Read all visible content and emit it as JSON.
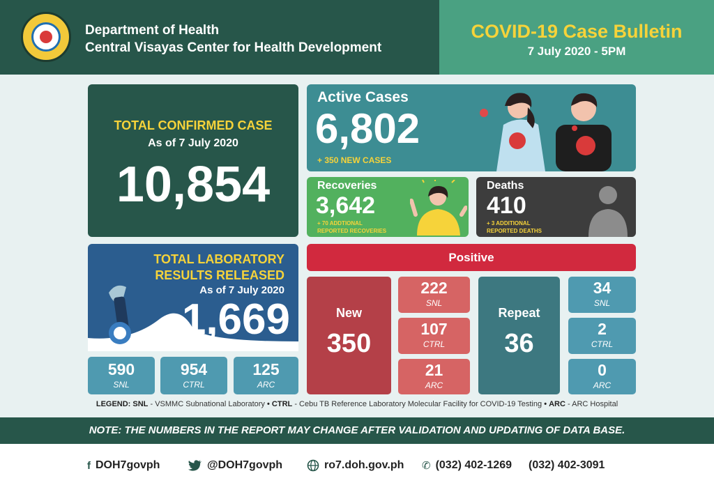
{
  "header": {
    "org_line1": "Department of Health",
    "org_line2": "Central Visayas Center for Health Development",
    "bulletin_title": "COVID-19 Case Bulletin",
    "bulletin_date": "7 July 2020 - 5PM",
    "seal_icon": "doh-seal-icon"
  },
  "total_confirmed": {
    "label": "TOTAL CONFIRMED CASE",
    "as_of": "As of 7 July 2020",
    "value": "10,854"
  },
  "active": {
    "label": "Active Cases",
    "value": "6,802",
    "new_cases": "+ 350 NEW CASES"
  },
  "recoveries": {
    "label": "Recoveries",
    "value": "3,642",
    "sub_line1": "+ 70 ADDTIONAL",
    "sub_line2": "REPORTED RECOVERIES"
  },
  "deaths": {
    "label": "Deaths",
    "value": "410",
    "sub_line1": "+ 3 ADDITIONAL",
    "sub_line2": "REPORTED DEATHS"
  },
  "lab": {
    "title_line1": "TOTAL LABORATORY",
    "title_line2": "RESULTS RELEASED",
    "as_of": "As of 7 July 2020",
    "value": "1,669",
    "breakdown": [
      {
        "value": "590",
        "label": "SNL"
      },
      {
        "value": "954",
        "label": "CTRL"
      },
      {
        "value": "125",
        "label": "ARC"
      }
    ]
  },
  "positive": {
    "label": "Positive",
    "new": {
      "label": "New",
      "value": "350",
      "breakdown": [
        {
          "value": "222",
          "label": "SNL"
        },
        {
          "value": "107",
          "label": "CTRL"
        },
        {
          "value": "21",
          "label": "ARC"
        }
      ]
    },
    "repeat": {
      "label": "Repeat",
      "value": "36",
      "breakdown": [
        {
          "value": "34",
          "label": "SNL"
        },
        {
          "value": "2",
          "label": "CTRL"
        },
        {
          "value": "0",
          "label": "ARC"
        }
      ]
    }
  },
  "legend": {
    "prefix": "LEGEND:",
    "snl_key": "SNL",
    "snl_text": "- VSMMC Subnational Laboratory",
    "ctrl_key": "CTRL",
    "ctrl_text": "- Cebu TB Reference Laboratory Molecular Facility for COVID-19 Testing",
    "arc_key": "ARC",
    "arc_text": "- ARC Hospital"
  },
  "note": "NOTE: THE NUMBERS IN THE REPORT MAY CHANGE AFTER VALIDATION AND UPDATING OF DATA BASE.",
  "footer": {
    "facebook": "DOH7govph",
    "twitter": "@DOH7govph",
    "website": "ro7.doh.gov.ph",
    "phone1": "(032) 402-1269",
    "phone2": "(032) 402-3091"
  },
  "colors": {
    "dark_green": "#27564a",
    "light_green": "#4aa182",
    "yellow": "#f6d33a",
    "active_teal": "#3d8d93",
    "recovery_green": "#52b15e",
    "death_gray": "#3d3d3d",
    "lab_blue": "#2b5d8f",
    "positive_red": "#d1293e"
  }
}
